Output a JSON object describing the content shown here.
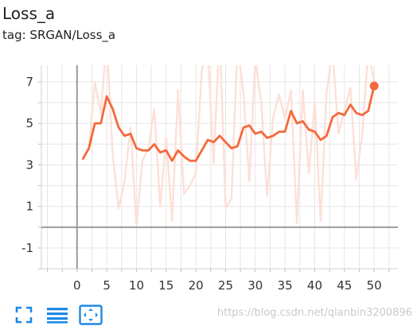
{
  "card": {
    "title": "Loss_a",
    "tag": "tag: SRGAN/Loss_a"
  },
  "toolbar": {
    "buttons": [
      {
        "name": "fullscreen-button",
        "icon": "fullscreen-icon"
      },
      {
        "name": "toggle-log-button",
        "icon": "list-lines-icon"
      },
      {
        "name": "fit-domain-button",
        "icon": "fit-to-data-icon"
      }
    ]
  },
  "watermark": "https://blog.csdn.net/qianbin3200896",
  "colors": {
    "smoothed": "#f4693c",
    "raw": "#fde0d7",
    "axis": "#999999",
    "grid": "#e6e6e6",
    "icon": "#1e88e5"
  },
  "chart_data": {
    "type": "line",
    "xlim": [
      -6,
      54
    ],
    "ylim": [
      -2.0,
      7.8
    ],
    "xticks": [
      0,
      5,
      10,
      15,
      20,
      25,
      30,
      35,
      40,
      45,
      50
    ],
    "yticks": [
      -1,
      1,
      3,
      5,
      7
    ],
    "grid": true,
    "series": [
      {
        "role": "raw",
        "x": [
          1,
          2,
          3,
          4,
          5,
          6,
          7,
          8,
          9,
          10,
          11,
          12,
          13,
          14,
          15,
          16,
          17,
          18,
          19,
          20,
          21,
          22,
          23,
          24,
          25,
          26,
          27,
          28,
          29,
          30,
          31,
          32,
          33,
          34,
          35,
          36,
          37,
          38,
          39,
          40,
          41,
          42,
          43,
          44,
          45,
          46,
          47,
          48,
          49,
          50
        ],
        "y": [
          3.3,
          3.8,
          7.0,
          5.5,
          9.0,
          3.5,
          0.9,
          2.2,
          4.8,
          0.1,
          3.2,
          3.8,
          5.7,
          1.0,
          4.3,
          0.3,
          6.6,
          1.6,
          2.0,
          2.6,
          7.6,
          8.5,
          3.1,
          9.5,
          0.9,
          1.4,
          8.8,
          6.5,
          2.2,
          8.1,
          6.0,
          1.5,
          5.3,
          6.4,
          5.2,
          6.6,
          0.2,
          6.6,
          2.6,
          6.0,
          0.3,
          6.5,
          8.5,
          4.5,
          5.6,
          6.7,
          2.3,
          4.5,
          8.5,
          7.0
        ]
      },
      {
        "role": "smoothed",
        "x": [
          1,
          2,
          3,
          4,
          5,
          6,
          7,
          8,
          9,
          10,
          11,
          12,
          13,
          14,
          15,
          16,
          17,
          18,
          19,
          20,
          21,
          22,
          23,
          24,
          25,
          26,
          27,
          28,
          29,
          30,
          31,
          32,
          33,
          34,
          35,
          36,
          37,
          38,
          39,
          40,
          41,
          42,
          43,
          44,
          45,
          46,
          47,
          48,
          49,
          50
        ],
        "y": [
          3.3,
          3.8,
          5.0,
          5.0,
          6.3,
          5.7,
          4.8,
          4.4,
          4.5,
          3.8,
          3.7,
          3.7,
          4.0,
          3.6,
          3.7,
          3.2,
          3.7,
          3.4,
          3.2,
          3.2,
          3.7,
          4.2,
          4.1,
          4.4,
          4.1,
          3.8,
          3.9,
          4.8,
          4.9,
          4.5,
          4.6,
          4.3,
          4.4,
          4.6,
          4.6,
          5.6,
          5.0,
          5.1,
          4.7,
          4.6,
          4.2,
          4.4,
          5.3,
          5.5,
          5.4,
          5.9,
          5.5,
          5.4,
          5.6,
          6.8
        ]
      }
    ]
  }
}
